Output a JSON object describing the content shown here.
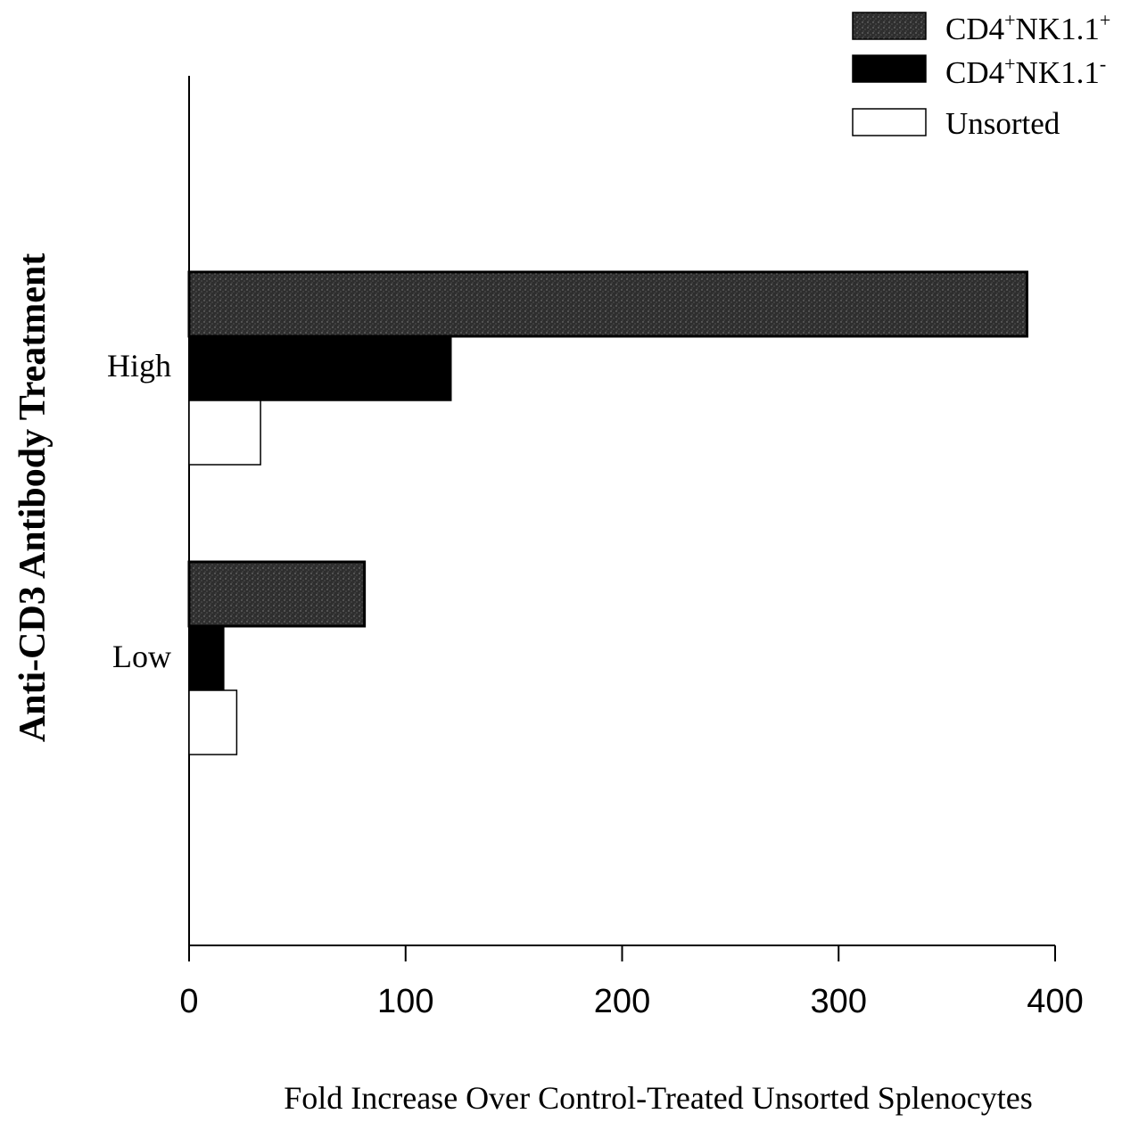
{
  "chart_data": {
    "type": "bar",
    "orientation": "horizontal",
    "categories": [
      "High",
      "Low"
    ],
    "series": [
      {
        "name": "CD4⁺NK1.1⁺",
        "name_base": "CD4",
        "name_sup1": "+",
        "name_mid": "NK1.1",
        "name_sup2": "+",
        "values": [
          387,
          81
        ],
        "color": "#333333",
        "pattern": "stippled-dark"
      },
      {
        "name": "CD4⁺NK1.1⁻",
        "name_base": "CD4",
        "name_sup1": "+",
        "name_mid": "NK1.1",
        "name_sup2": "-",
        "values": [
          121,
          16
        ],
        "color": "#000000",
        "pattern": "solid"
      },
      {
        "name": "Unsorted",
        "values": [
          33,
          22
        ],
        "color": "#ffffff",
        "pattern": "outline"
      }
    ],
    "xlabel": "Fold Increase Over Control-Treated Unsorted Splenocytes",
    "ylabel": "Anti-CD3 Antibody Treatment",
    "xlim": [
      0,
      400
    ],
    "xticks": [
      "0",
      "100",
      "200",
      "300",
      "400"
    ],
    "grid": false,
    "legend_position": "top-right"
  }
}
